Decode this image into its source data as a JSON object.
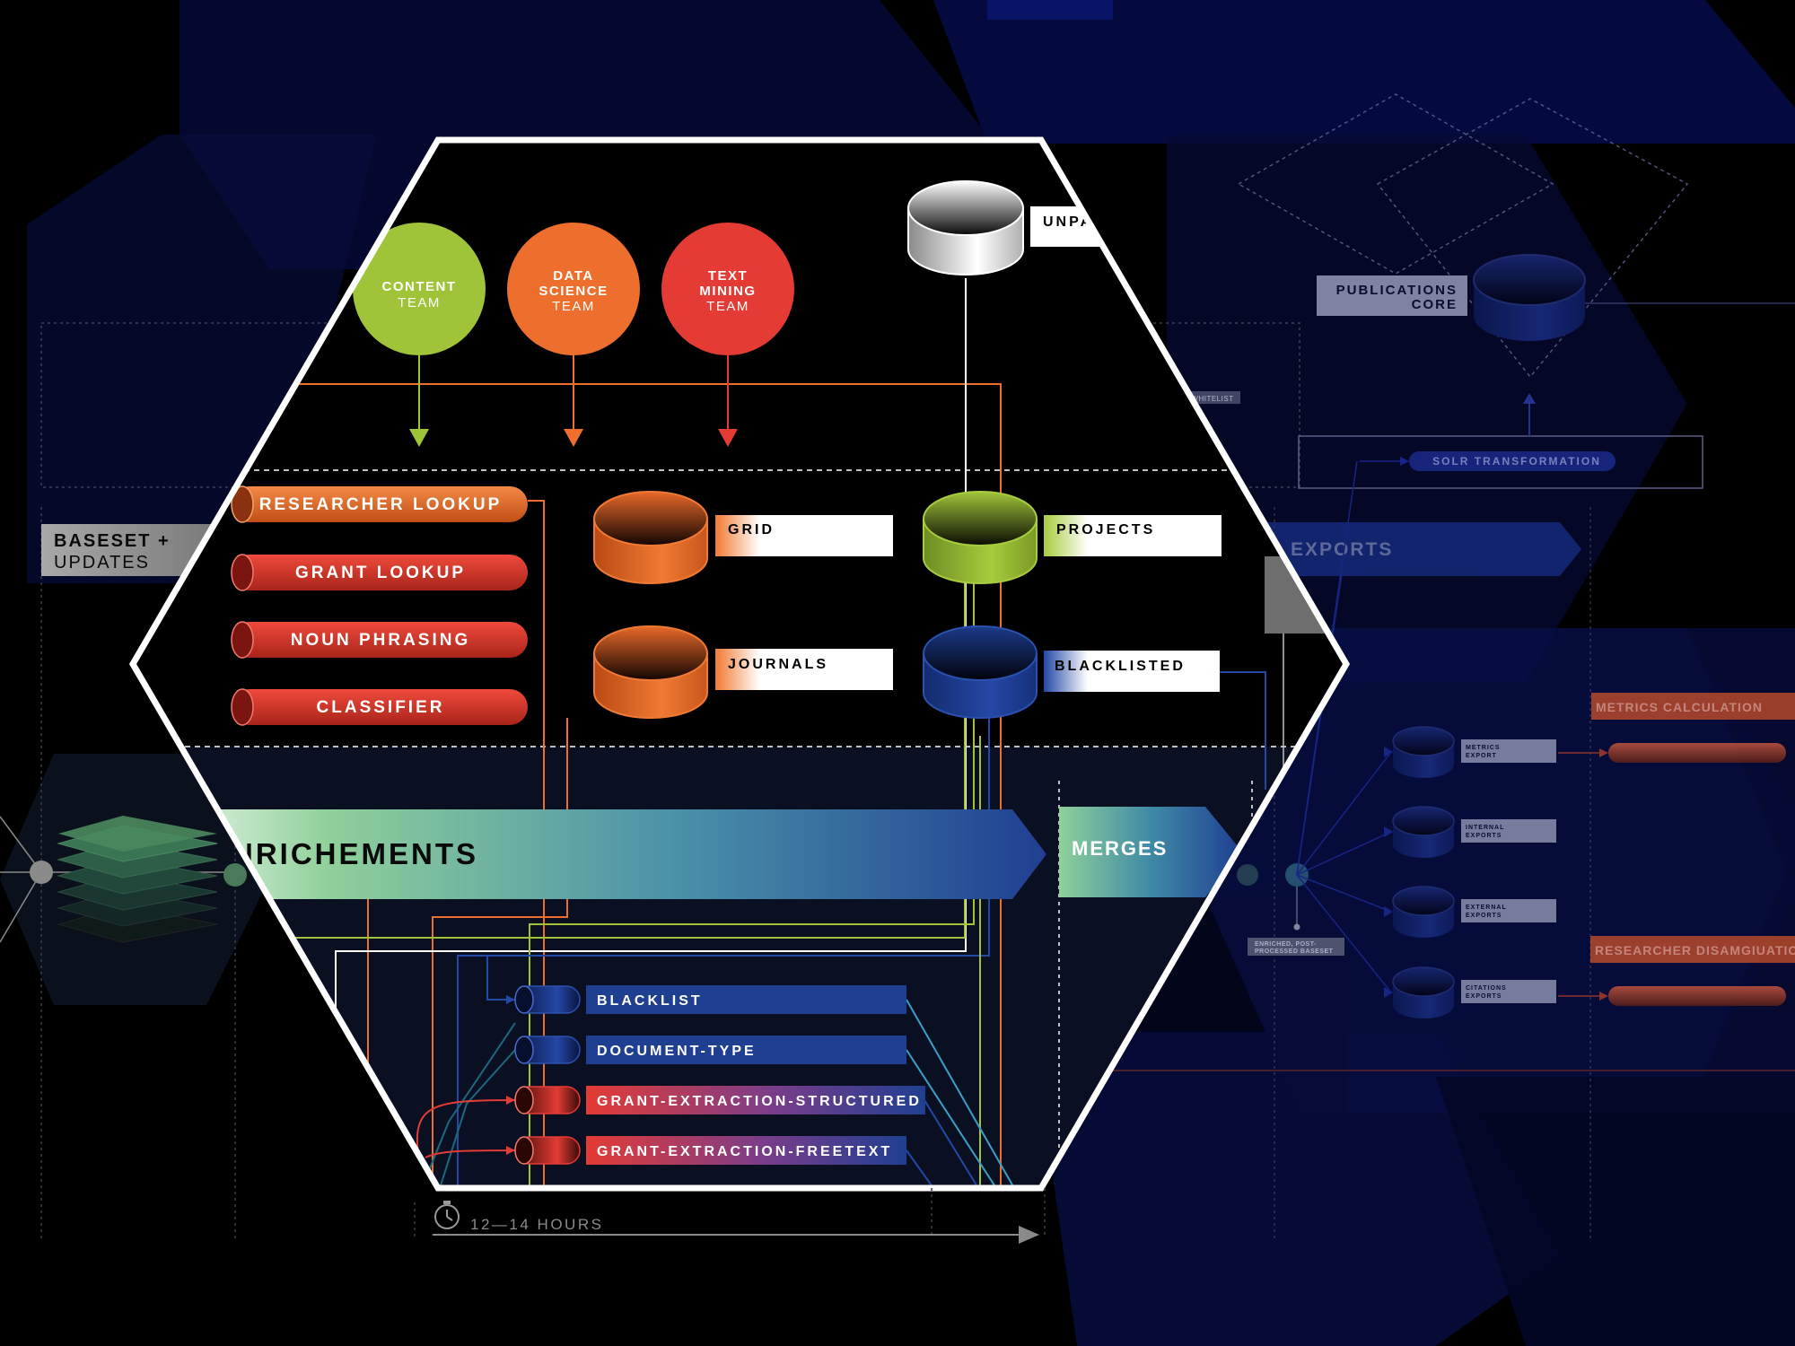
{
  "teams": [
    {
      "line1": "CONTENT",
      "line2": "",
      "line3": "TEAM",
      "color": "#9fc43a"
    },
    {
      "line1": "DATA",
      "line2": "SCIENCE",
      "line3": "TEAM",
      "color": "#ee6f2d"
    },
    {
      "line1": "TEXT",
      "line2": "MINING",
      "line3": "TEAM",
      "color": "#e43b34"
    }
  ],
  "pipes": [
    "RESEARCHER LOOKUP",
    "GRANT LOOKUP",
    "NOUN PHRASING",
    "CLASSIFIER"
  ],
  "databases": {
    "unpa": "UNPA",
    "grid": "GRID",
    "journals": "JOURNALS",
    "projects": "PROJECTS",
    "blacklisted": "BLACKLISTED"
  },
  "baseset": {
    "line1": "BASESET +",
    "line2": "UPDATES"
  },
  "enrichments": "NRICHEMENTS",
  "merges": "MERGES",
  "exports": "EXPORTS",
  "publications_core": {
    "line1": "PUBLICATIONS",
    "line2": "CORE"
  },
  "whitelist": "WHITELIST",
  "solr": "SOLR TRANSFORMATION",
  "enriched_baseset": {
    "line1": "ENRICHED, POST-",
    "line2": "PROCESSED BASESET"
  },
  "export_items": [
    {
      "line1": "METRICS",
      "line2": "EXPORT"
    },
    {
      "line1": "INTERNAL",
      "line2": "EXPORTS"
    },
    {
      "line1": "EXTERNAL",
      "line2": "EXPORTS"
    },
    {
      "line1": "CITATIONS",
      "line2": "EXPORTS"
    }
  ],
  "metrics_calc": "METRICS CALCULATION",
  "researcher_disamb": "RESEARCHER DISAMGIUATION",
  "bottom_items": [
    {
      "label": "BLACKLIST",
      "kind": "blue"
    },
    {
      "label": "DOCUMENT-TYPE",
      "kind": "blue"
    },
    {
      "label": "GRANT-EXTRACTION-STRUCTURED",
      "kind": "red"
    },
    {
      "label": "GRANT-EXTRACTION-FREETEXT",
      "kind": "red"
    }
  ],
  "duration": "12—14 HOURS",
  "colors": {
    "orange": "#ee6f2d",
    "red": "#e43b34",
    "green": "#9fc43a",
    "blue": "#1f3f91",
    "navy": "#0a1150"
  }
}
